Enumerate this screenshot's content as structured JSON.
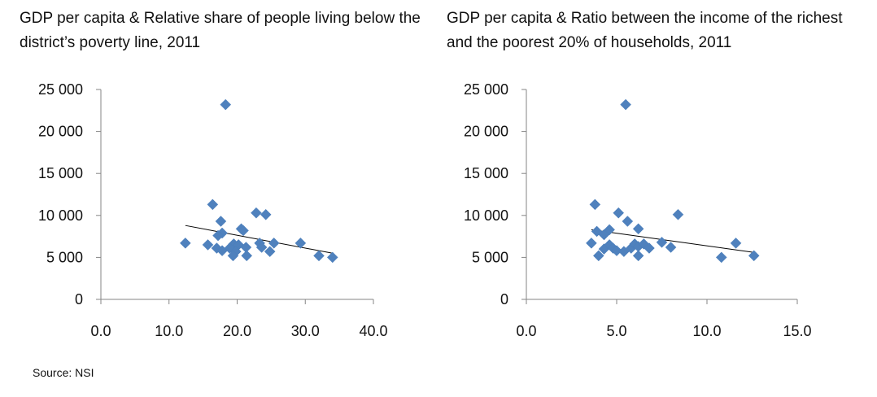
{
  "source": "Source: NSI",
  "colors": {
    "marker": "#4F81BD",
    "axis": "#868686",
    "trend": "#000000"
  },
  "chart_data": [
    {
      "type": "scatter",
      "title": "GDP per capita & Relative share of people living below the district’s poverty line, 2011",
      "xlabel": "",
      "ylabel": "",
      "xlim": [
        0,
        40
      ],
      "ylim": [
        0,
        25000
      ],
      "x_ticks": [
        "0.0",
        "10.0",
        "20.0",
        "30.0",
        "40.0"
      ],
      "y_ticks": [
        "0",
        "5 000",
        "10 000",
        "15 000",
        "20 000",
        "25 000"
      ],
      "grid": false,
      "legend": "none",
      "trendline": {
        "x": [
          12.4,
          34.0
        ],
        "y": [
          8800,
          5500
        ]
      },
      "points": [
        [
          18.3,
          23200
        ],
        [
          16.4,
          11300
        ],
        [
          22.8,
          10300
        ],
        [
          24.2,
          10100
        ],
        [
          17.6,
          9300
        ],
        [
          20.6,
          8400
        ],
        [
          20.9,
          8200
        ],
        [
          17.8,
          7900
        ],
        [
          17.2,
          7600
        ],
        [
          12.4,
          6700
        ],
        [
          15.7,
          6500
        ],
        [
          19.5,
          6600
        ],
        [
          23.3,
          6700
        ],
        [
          25.4,
          6700
        ],
        [
          29.3,
          6700
        ],
        [
          17.0,
          6100
        ],
        [
          18.9,
          6100
        ],
        [
          20.2,
          6500
        ],
        [
          21.3,
          6200
        ],
        [
          23.6,
          6200
        ],
        [
          17.8,
          5800
        ],
        [
          19.8,
          5700
        ],
        [
          24.8,
          5700
        ],
        [
          19.4,
          5200
        ],
        [
          21.4,
          5200
        ],
        [
          32.0,
          5200
        ],
        [
          34.0,
          5000
        ]
      ]
    },
    {
      "type": "scatter",
      "title": "GDP per capita & Ratio between the income of the richest and the poorest 20% of households, 2011",
      "xlabel": "",
      "ylabel": "",
      "xlim": [
        0,
        15
      ],
      "ylim": [
        0,
        25000
      ],
      "x_ticks": [
        "0.0",
        "5.0",
        "10.0",
        "15.0"
      ],
      "y_ticks": [
        "0",
        "5 000",
        "10 000",
        "15 000",
        "20 000",
        "25 000"
      ],
      "grid": false,
      "legend": "none",
      "trendline": {
        "x": [
          3.6,
          12.6
        ],
        "y": [
          8300,
          5600
        ]
      },
      "points": [
        [
          5.5,
          23200
        ],
        [
          3.8,
          11300
        ],
        [
          5.1,
          10300
        ],
        [
          8.4,
          10100
        ],
        [
          5.6,
          9300
        ],
        [
          6.2,
          8400
        ],
        [
          4.6,
          8300
        ],
        [
          3.9,
          8100
        ],
        [
          4.3,
          7700
        ],
        [
          3.6,
          6700
        ],
        [
          4.3,
          6000
        ],
        [
          4.6,
          6500
        ],
        [
          4.8,
          6100
        ],
        [
          5.0,
          5800
        ],
        [
          5.4,
          5700
        ],
        [
          5.8,
          6100
        ],
        [
          6.0,
          6600
        ],
        [
          6.2,
          6300
        ],
        [
          6.5,
          6600
        ],
        [
          6.8,
          6100
        ],
        [
          7.5,
          6800
        ],
        [
          8.0,
          6200
        ],
        [
          11.6,
          6700
        ],
        [
          4.0,
          5200
        ],
        [
          6.2,
          5200
        ],
        [
          10.8,
          5000
        ],
        [
          12.6,
          5200
        ]
      ]
    }
  ]
}
